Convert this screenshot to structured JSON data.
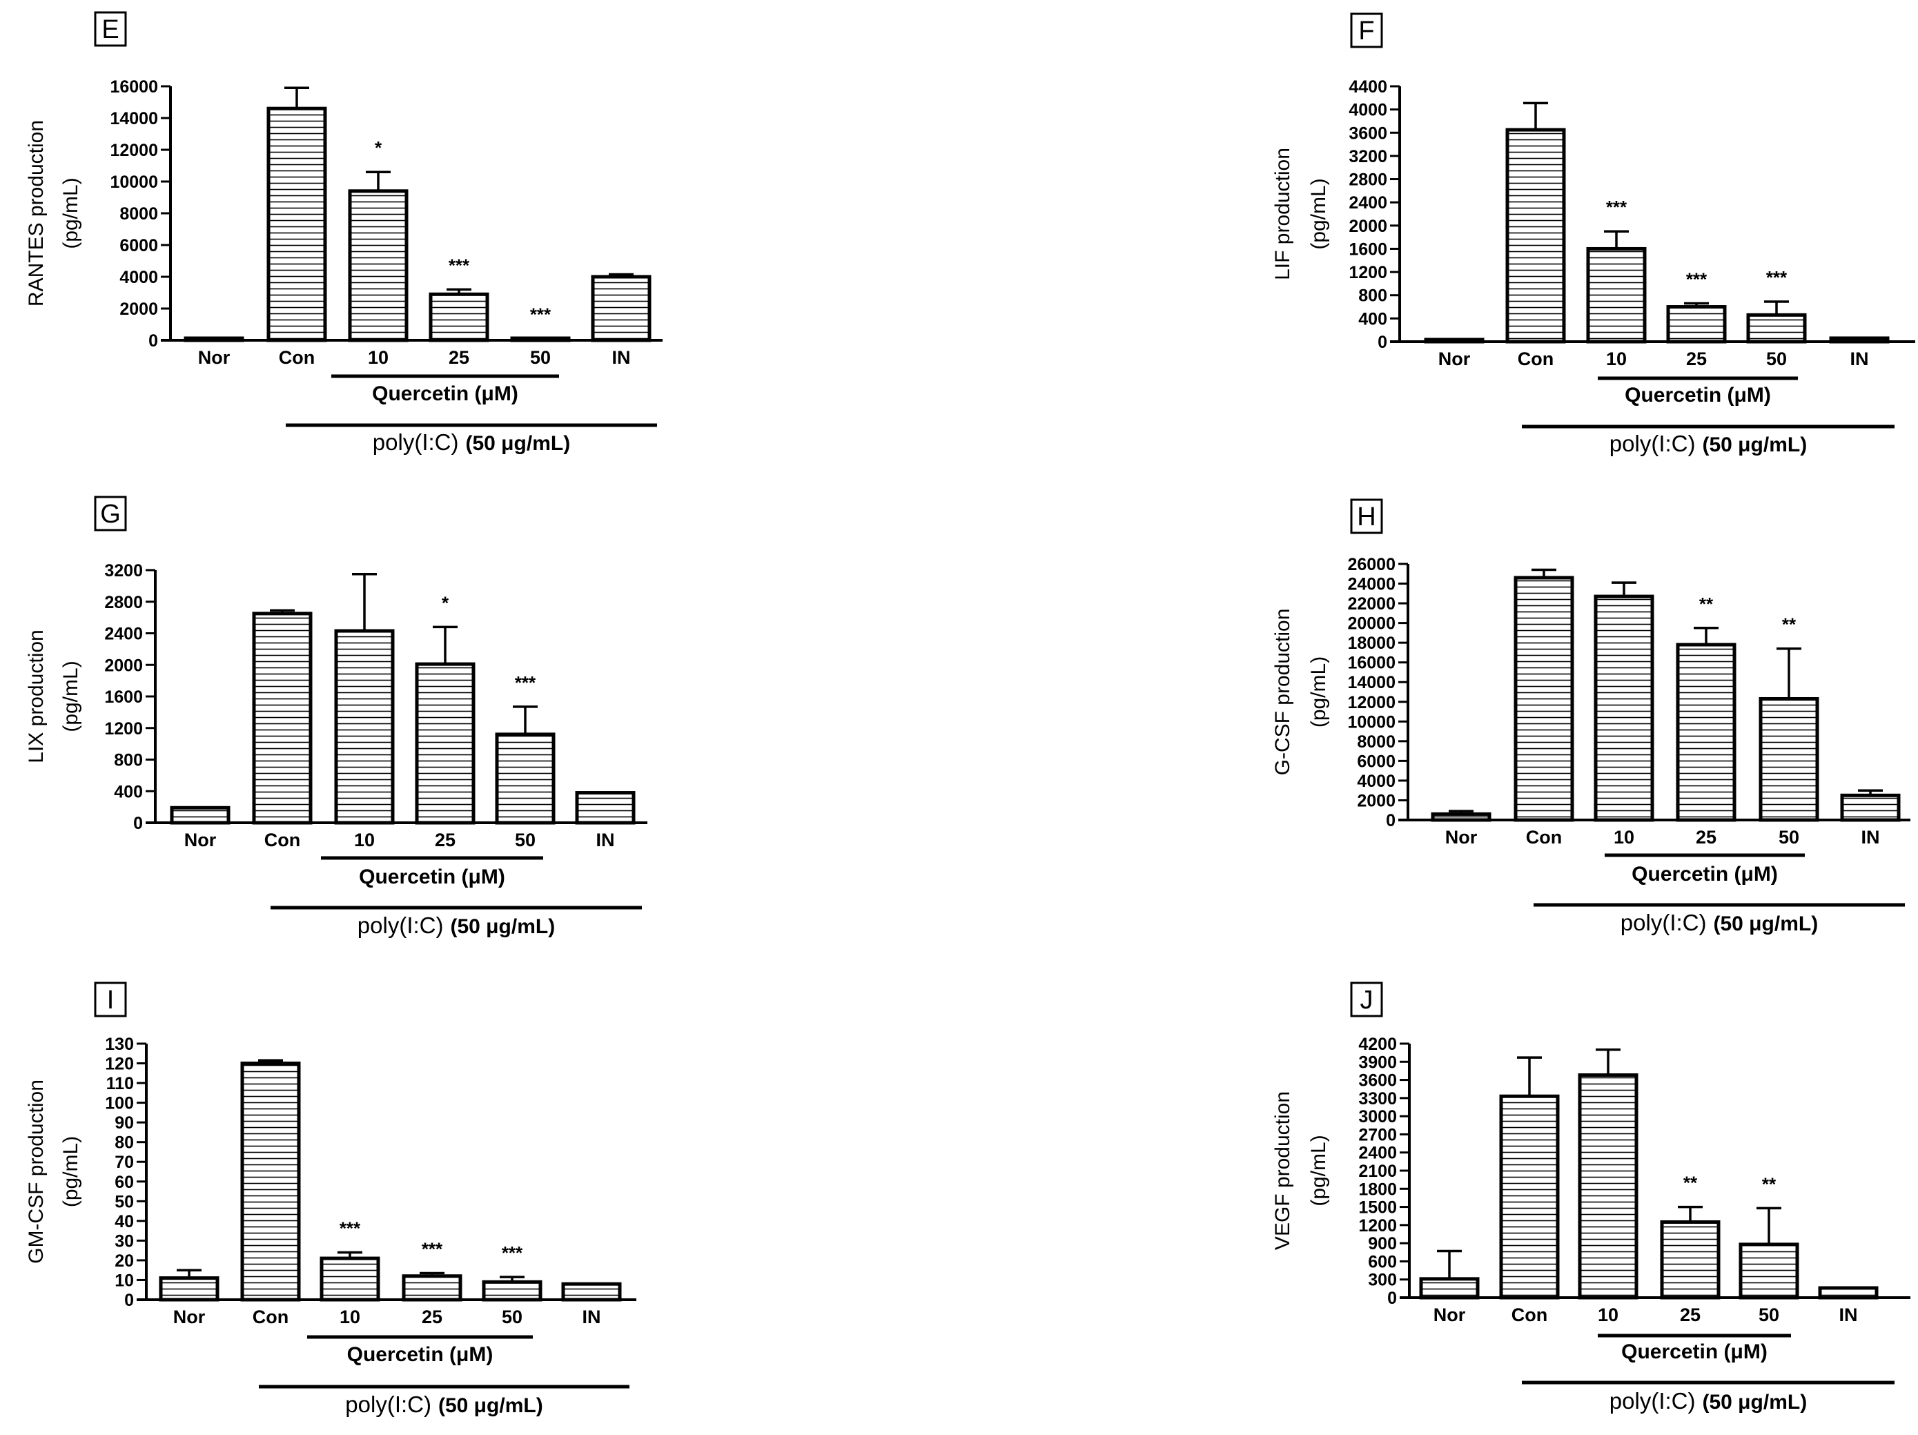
{
  "figure_shared": {
    "group_label": "Quercetin (μM)",
    "treatment_label": "poly(I:C)",
    "treatment_unit": "(50 μg/mL)"
  },
  "chart_data": [
    {
      "panel": "E",
      "type": "bar",
      "ylabel": "RANTES production",
      "yunit": "(pg/mL)",
      "categories": [
        "Nor",
        "Con",
        "10",
        "25",
        "50",
        "IN"
      ],
      "values": [
        100,
        14600,
        9400,
        2900,
        100,
        4000
      ],
      "errors": [
        0,
        1300,
        1200,
        300,
        0,
        150
      ],
      "stars": [
        "",
        "",
        "*",
        "***",
        "***",
        ""
      ],
      "ylim": [
        0,
        16000
      ],
      "yticks": [
        0,
        2000,
        4000,
        6000,
        8000,
        10000,
        12000,
        14000,
        16000
      ]
    },
    {
      "panel": "F",
      "type": "bar",
      "ylabel": "LIF production",
      "yunit": "(pg/mL)",
      "categories": [
        "Nor",
        "Con",
        "10",
        "25",
        "50",
        "IN"
      ],
      "values": [
        20,
        3650,
        1600,
        600,
        460,
        60
      ],
      "errors": [
        0,
        460,
        300,
        60,
        230,
        0
      ],
      "stars": [
        "",
        "",
        "***",
        "***",
        "***",
        ""
      ],
      "ylim": [
        0,
        4400
      ],
      "yticks": [
        0,
        400,
        800,
        1200,
        1600,
        2000,
        2400,
        2800,
        3200,
        3600,
        4000,
        4400
      ]
    },
    {
      "panel": "G",
      "type": "bar",
      "ylabel": "LIX production",
      "yunit": "(pg/mL)",
      "categories": [
        "Nor",
        "Con",
        "10",
        "25",
        "50",
        "IN"
      ],
      "values": [
        190,
        2650,
        2430,
        2010,
        1120,
        380
      ],
      "errors": [
        0,
        40,
        720,
        470,
        350,
        0
      ],
      "stars": [
        "",
        "",
        "",
        "*",
        "***",
        ""
      ],
      "ylim": [
        0,
        3200
      ],
      "yticks": [
        0,
        400,
        800,
        1200,
        1600,
        2000,
        2400,
        2800,
        3200
      ]
    },
    {
      "panel": "H",
      "type": "bar",
      "ylabel": "G-CSF production",
      "yunit": "(pg/mL)",
      "categories": [
        "Nor",
        "Con",
        "10",
        "25",
        "50",
        "IN"
      ],
      "values": [
        600,
        24600,
        22700,
        17800,
        12300,
        2500
      ],
      "errors": [
        300,
        800,
        1400,
        1700,
        5100,
        500
      ],
      "stars": [
        "",
        "",
        "",
        "**",
        "**",
        ""
      ],
      "ylim": [
        0,
        26000
      ],
      "yticks": [
        0,
        2000,
        4000,
        6000,
        8000,
        10000,
        12000,
        14000,
        16000,
        18000,
        20000,
        22000,
        24000,
        26000
      ]
    },
    {
      "panel": "I",
      "type": "bar",
      "ylabel": "GM-CSF production",
      "yunit": "(pg/mL)",
      "categories": [
        "Nor",
        "Con",
        "10",
        "25",
        "50",
        "IN"
      ],
      "values": [
        11,
        120,
        21,
        12,
        9,
        8
      ],
      "errors": [
        4,
        1.5,
        3,
        1.5,
        2.5,
        0
      ],
      "stars": [
        "",
        "",
        "***",
        "***",
        "***",
        ""
      ],
      "ylim": [
        0,
        130
      ],
      "yticks": [
        0,
        10,
        20,
        30,
        40,
        50,
        60,
        70,
        80,
        90,
        100,
        110,
        120,
        130
      ]
    },
    {
      "panel": "J",
      "type": "bar",
      "ylabel": "VEGF production",
      "yunit": "(pg/mL)",
      "categories": [
        "Nor",
        "Con",
        "10",
        "25",
        "50",
        "IN"
      ],
      "values": [
        310,
        3330,
        3680,
        1250,
        880,
        160
      ],
      "errors": [
        460,
        640,
        420,
        250,
        600,
        0
      ],
      "stars": [
        "",
        "",
        "",
        "**",
        "**",
        ""
      ],
      "ylim": [
        0,
        4200
      ],
      "yticks": [
        0,
        300,
        600,
        900,
        1200,
        1500,
        1800,
        2100,
        2400,
        2700,
        3000,
        3300,
        3600,
        3900,
        4200
      ]
    }
  ]
}
